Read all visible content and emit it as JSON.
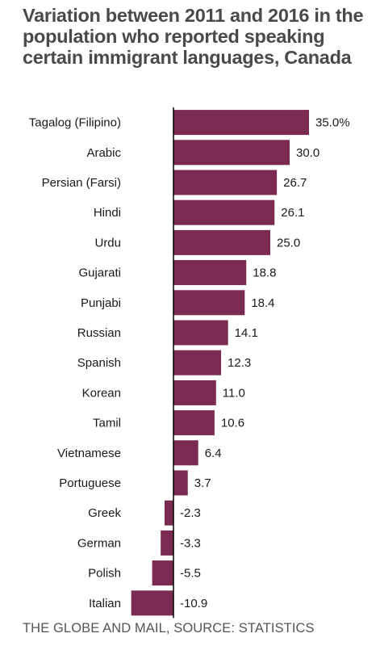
{
  "chart_data": {
    "type": "bar",
    "orientation": "horizontal",
    "title": "Variation between 2011 and 2016 in the population who reported speaking certain immigrant languages, Canada",
    "source": "THE GLOBE AND MAIL, SOURCE: STATISTICS",
    "categories": [
      "Tagalog (Filipino)",
      "Arabic",
      "Persian (Farsi)",
      "Hindi",
      "Urdu",
      "Gujarati",
      "Punjabi",
      "Russian",
      "Spanish",
      "Korean",
      "Tamil",
      "Vietnamese",
      "Portuguese",
      "Greek",
      "German",
      "Polish",
      "Italian"
    ],
    "values": [
      35.0,
      30.0,
      26.7,
      26.1,
      25.0,
      18.8,
      18.4,
      14.1,
      12.3,
      11.0,
      10.6,
      6.4,
      3.7,
      -2.3,
      -3.3,
      -5.5,
      -10.9
    ],
    "value_labels": [
      "35.0%",
      "30.0",
      "26.7",
      "26.1",
      "25.0",
      "18.8",
      "18.4",
      "14.1",
      "12.3",
      "11.0",
      "10.6",
      "6.4",
      "3.7",
      "-2.3",
      "-3.3",
      "-5.5",
      "-10.9"
    ],
    "unit": "%",
    "bar_color": "#7b2a52",
    "axis_color": "#000000",
    "xlim": [
      -11,
      35
    ],
    "grid": false,
    "legend": "none"
  }
}
